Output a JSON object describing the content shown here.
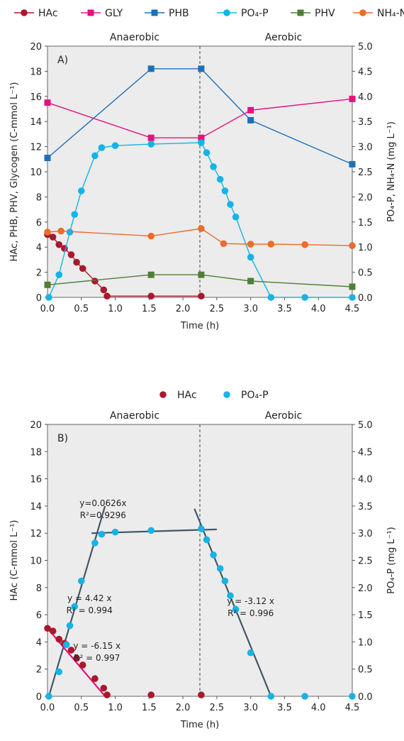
{
  "chart_data": [
    {
      "type": "line",
      "panel_label": "A)",
      "phase_labels": [
        "Anaerobic",
        "Aerobic"
      ],
      "phase_divider_x": 2.25,
      "xlabel": "Time (h)",
      "ylabel": "HAc, PHB, PHV, Glycogen (C-mmol L⁻¹)",
      "y2label": "PO₄-P, NH₄-N (mg L⁻¹)",
      "xlim": [
        0,
        4.5
      ],
      "ylim": [
        0,
        20
      ],
      "y2lim": [
        0,
        5
      ],
      "xticks": [
        "0.0",
        "0.5",
        "1.0",
        "1.5",
        "2.0",
        "2.5",
        "3.0",
        "3.5",
        "4.0",
        "4.5"
      ],
      "yticks": [
        "0",
        "2",
        "4",
        "6",
        "8",
        "10",
        "12",
        "14",
        "16",
        "18",
        "20"
      ],
      "y2ticks": [
        "0.0",
        "0.5",
        "1.0",
        "1.5",
        "2.0",
        "2.5",
        "3.0",
        "3.5",
        "4.0",
        "4.5",
        "5.0"
      ],
      "legend": [
        "HAc",
        "GLY",
        "PHB",
        "PO₄-P",
        "PHV",
        "NH₄-N"
      ],
      "series": [
        {
          "name": "HAc",
          "axis": "left",
          "marker": "circle",
          "color": "#a8192e",
          "points": [
            [
              0.0,
              5.0
            ],
            [
              0.08,
              4.8
            ],
            [
              0.17,
              4.2
            ],
            [
              0.25,
              3.9
            ],
            [
              0.35,
              3.4
            ],
            [
              0.43,
              2.8
            ],
            [
              0.52,
              2.3
            ],
            [
              0.7,
              1.3
            ],
            [
              0.83,
              0.6
            ],
            [
              0.88,
              0.1
            ],
            [
              1.53,
              0.1
            ],
            [
              2.27,
              0.1
            ]
          ]
        },
        {
          "name": "GLY",
          "axis": "left",
          "marker": "square",
          "color": "#e2127f",
          "points": [
            [
              0.0,
              15.5
            ],
            [
              1.53,
              12.7
            ],
            [
              2.27,
              12.7
            ],
            [
              3.0,
              14.9
            ],
            [
              4.5,
              15.8
            ]
          ]
        },
        {
          "name": "PHB",
          "axis": "left",
          "marker": "square",
          "color": "#1d6fb8",
          "points": [
            [
              0.0,
              11.1
            ],
            [
              1.53,
              18.2
            ],
            [
              2.27,
              18.2
            ],
            [
              3.0,
              14.1
            ],
            [
              4.5,
              10.6
            ]
          ]
        },
        {
          "name": "PO₄-P",
          "axis": "right",
          "marker": "circle",
          "color": "#16b3e6",
          "points": [
            [
              0.02,
              0.0
            ],
            [
              0.17,
              0.45
            ],
            [
              0.33,
              1.3
            ],
            [
              0.4,
              1.65
            ],
            [
              0.5,
              2.12
            ],
            [
              0.7,
              2.82
            ],
            [
              0.8,
              2.98
            ],
            [
              1.0,
              3.02
            ],
            [
              1.53,
              3.05
            ],
            [
              2.27,
              3.08
            ],
            [
              2.35,
              2.88
            ],
            [
              2.45,
              2.6
            ],
            [
              2.55,
              2.35
            ],
            [
              2.62,
              2.12
            ],
            [
              2.7,
              1.85
            ],
            [
              2.78,
              1.6
            ],
            [
              3.0,
              0.8
            ],
            [
              3.3,
              0.0
            ],
            [
              3.8,
              0.0
            ],
            [
              4.5,
              0.0
            ]
          ]
        },
        {
          "name": "PHV",
          "axis": "left",
          "marker": "square",
          "color": "#4e7f35",
          "points": [
            [
              0.0,
              1.0
            ],
            [
              1.53,
              1.8
            ],
            [
              2.27,
              1.8
            ],
            [
              3.0,
              1.3
            ],
            [
              4.5,
              0.85
            ]
          ]
        },
        {
          "name": "NH₄-N",
          "axis": "right",
          "marker": "circle",
          "color": "#ee6b2a",
          "points": [
            [
              0.0,
              1.3
            ],
            [
              0.2,
              1.32
            ],
            [
              1.53,
              1.22
            ],
            [
              2.27,
              1.37
            ],
            [
              2.6,
              1.07
            ],
            [
              3.0,
              1.06
            ],
            [
              3.3,
              1.06
            ],
            [
              3.8,
              1.05
            ],
            [
              4.5,
              1.03
            ]
          ]
        }
      ]
    },
    {
      "type": "scatter",
      "panel_label": "B)",
      "phase_labels": [
        "Anaerobic",
        "Aerobic"
      ],
      "phase_divider_x": 2.25,
      "xlabel": "Time (h)",
      "ylabel": "HAc (C-mmol L⁻¹)",
      "y2label": "PO₄-P (mg L⁻¹)",
      "xlim": [
        0,
        4.5
      ],
      "ylim": [
        0,
        20
      ],
      "y2lim": [
        0,
        5
      ],
      "xticks": [
        "0.0",
        "0.5",
        "1.0",
        "1.5",
        "2.0",
        "2.5",
        "3.0",
        "3.5",
        "4.0",
        "4.5"
      ],
      "yticks": [
        "0",
        "2",
        "4",
        "6",
        "8",
        "10",
        "12",
        "14",
        "16",
        "18",
        "20"
      ],
      "y2ticks": [
        "0.0",
        "0.5",
        "1.0",
        "1.5",
        "2.0",
        "2.5",
        "3.0",
        "3.5",
        "4.0",
        "4.5",
        "5.0"
      ],
      "legend": [
        "HAc",
        "PO₄-P"
      ],
      "series": [
        {
          "name": "HAc",
          "axis": "left",
          "marker": "circle",
          "color": "#a8192e",
          "points": [
            [
              0.0,
              5.0
            ],
            [
              0.08,
              4.8
            ],
            [
              0.17,
              4.2
            ],
            [
              0.25,
              3.9
            ],
            [
              0.35,
              3.4
            ],
            [
              0.43,
              2.8
            ],
            [
              0.52,
              2.3
            ],
            [
              0.7,
              1.3
            ],
            [
              0.83,
              0.6
            ],
            [
              0.88,
              0.1
            ],
            [
              1.53,
              0.1
            ],
            [
              2.27,
              0.1
            ]
          ]
        },
        {
          "name": "PO₄-P",
          "axis": "right",
          "marker": "circle",
          "color": "#16b3e6",
          "points": [
            [
              0.02,
              0.0
            ],
            [
              0.17,
              0.45
            ],
            [
              0.28,
              0.95
            ],
            [
              0.33,
              1.3
            ],
            [
              0.4,
              1.65
            ],
            [
              0.5,
              2.12
            ],
            [
              0.7,
              2.82
            ],
            [
              0.8,
              2.98
            ],
            [
              1.0,
              3.02
            ],
            [
              1.53,
              3.05
            ],
            [
              2.27,
              3.08
            ],
            [
              2.35,
              2.88
            ],
            [
              2.45,
              2.6
            ],
            [
              2.55,
              2.35
            ],
            [
              2.62,
              2.12
            ],
            [
              2.7,
              1.85
            ],
            [
              2.78,
              1.6
            ],
            [
              3.0,
              0.8
            ],
            [
              3.3,
              0.0
            ],
            [
              3.8,
              0.0
            ],
            [
              4.5,
              0.0
            ]
          ]
        }
      ],
      "fits": [
        {
          "axis": "right",
          "color": "#3f5866",
          "from": [
            0.02,
            0.0
          ],
          "to": [
            0.85,
            3.5
          ],
          "eq": "y = 4.42 x",
          "r2": "R² = 0.994",
          "label_at": [
            0.62,
            7.0
          ]
        },
        {
          "axis": "right",
          "color": "#3f5866",
          "from": [
            0.65,
            3.0
          ],
          "to": [
            2.5,
            3.07
          ],
          "eq": "y=0.0626x",
          "r2": "R²=0.9296",
          "label_at": [
            0.82,
            14.0
          ]
        },
        {
          "axis": "right",
          "color": "#3f5866",
          "from": [
            2.17,
            3.45
          ],
          "to": [
            3.3,
            0.0
          ],
          "eq": "y = -3.12 x",
          "r2": "R² = 0.996",
          "label_at": [
            3.0,
            6.8
          ]
        },
        {
          "axis": "left",
          "color": "#e2127f",
          "from": [
            0.0,
            5.0
          ],
          "to": [
            0.85,
            0.0
          ],
          "eq": "y = -6.15 x",
          "r2": "R² = 0.997",
          "label_at": [
            0.73,
            3.5
          ]
        }
      ]
    }
  ]
}
